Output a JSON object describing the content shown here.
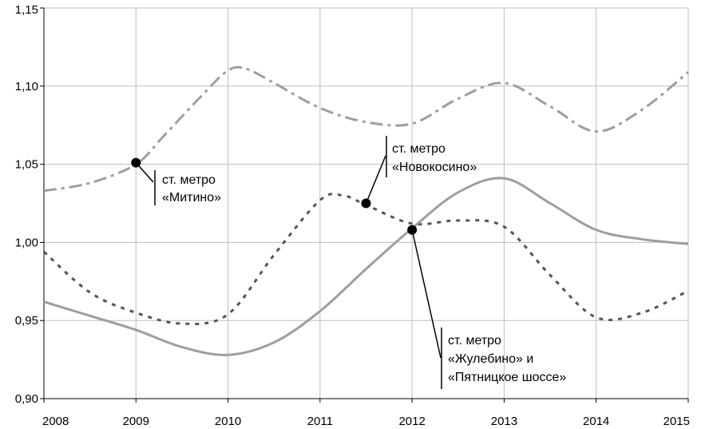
{
  "chart_data": {
    "type": "line",
    "title": "",
    "xlabel": "",
    "ylabel": "",
    "xlim": [
      2008,
      2015
    ],
    "ylim": [
      0.9,
      1.15
    ],
    "grid": true,
    "legend": "none",
    "x_ticks": [
      "2008",
      "2009",
      "2010",
      "2011",
      "2012",
      "2013",
      "2014",
      "2015"
    ],
    "y_ticks": [
      "0,90",
      "0,95",
      "1,00",
      "1,05",
      "1,10",
      "1,15"
    ],
    "colors": {
      "dashdot": "#9e9e9e",
      "solid": "#9e9e9e",
      "dotted": "#555555",
      "marker": "#000000"
    },
    "series": [
      {
        "style": "dashdot",
        "points": [
          [
            2008.0,
            1.033
          ],
          [
            2008.5,
            1.038
          ],
          [
            2009.0,
            1.05
          ],
          [
            2009.3,
            1.068
          ],
          [
            2009.7,
            1.093
          ],
          [
            2010.0,
            1.11
          ],
          [
            2010.2,
            1.111
          ],
          [
            2010.5,
            1.102
          ],
          [
            2011.0,
            1.086
          ],
          [
            2011.5,
            1.077
          ],
          [
            2012.0,
            1.076
          ],
          [
            2012.5,
            1.092
          ],
          [
            2013.0,
            1.102
          ],
          [
            2013.5,
            1.087
          ],
          [
            2014.0,
            1.071
          ],
          [
            2014.5,
            1.085
          ],
          [
            2015.0,
            1.109
          ]
        ]
      },
      {
        "style": "dotted",
        "points": [
          [
            2008.0,
            0.994
          ],
          [
            2008.5,
            0.968
          ],
          [
            2009.0,
            0.955
          ],
          [
            2009.5,
            0.948
          ],
          [
            2010.0,
            0.954
          ],
          [
            2010.5,
            0.992
          ],
          [
            2011.0,
            1.027
          ],
          [
            2011.25,
            1.03
          ],
          [
            2011.5,
            1.024
          ],
          [
            2012.0,
            1.012
          ],
          [
            2012.5,
            1.014
          ],
          [
            2013.0,
            1.01
          ],
          [
            2013.5,
            0.979
          ],
          [
            2014.0,
            0.952
          ],
          [
            2014.5,
            0.955
          ],
          [
            2015.0,
            0.969
          ]
        ]
      },
      {
        "style": "solid",
        "points": [
          [
            2008.0,
            0.962
          ],
          [
            2008.5,
            0.953
          ],
          [
            2009.0,
            0.944
          ],
          [
            2009.5,
            0.933
          ],
          [
            2010.0,
            0.928
          ],
          [
            2010.5,
            0.936
          ],
          [
            2011.0,
            0.956
          ],
          [
            2011.5,
            0.983
          ],
          [
            2012.0,
            1.009
          ],
          [
            2012.5,
            1.032
          ],
          [
            2013.0,
            1.041
          ],
          [
            2013.5,
            1.025
          ],
          [
            2014.0,
            1.008
          ],
          [
            2014.5,
            1.002
          ],
          [
            2015.0,
            0.999
          ]
        ]
      }
    ],
    "annotations": [
      {
        "lines": [
          "ст. метро",
          "«Митино»"
        ],
        "point": [
          2009.0,
          1.051
        ]
      },
      {
        "lines": [
          "ст. метро",
          "«Новокосино»"
        ],
        "point": [
          2011.5,
          1.025
        ]
      },
      {
        "lines": [
          "ст. метро",
          "«Жулебино» и",
          "«Пятницкое шоссе»"
        ],
        "point": [
          2012.0,
          1.008
        ]
      }
    ]
  }
}
